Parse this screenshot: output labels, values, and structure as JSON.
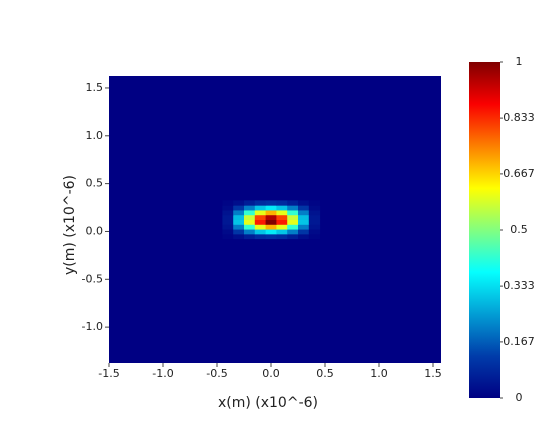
{
  "chart_data": {
    "type": "heatmap",
    "xlabel": "x(m) (x10^-6)",
    "ylabel": "y(m) (x10^-6)",
    "xlim": [
      -1.5,
      1.574
    ],
    "ylim": [
      -1.375,
      1.625
    ],
    "xticks": [
      -1.5,
      {
        "value": -1,
        "label": "-1.0"
      },
      -0.5,
      {
        "value": 0,
        "label": "0.0"
      },
      0.5,
      {
        "value": 1,
        "label": "1.0"
      },
      1.5
    ],
    "yticks": [
      {
        "value": -1,
        "label": "-1.0"
      },
      -0.5,
      {
        "value": 0,
        "label": "0.0"
      },
      0.5,
      {
        "value": 1,
        "label": "1.0"
      },
      1.5
    ],
    "x": [
      -0.4,
      -0.3,
      -0.2,
      -0.1,
      0,
      0.1,
      0.2,
      0.3,
      0.4
    ],
    "y": [
      -0.05,
      0,
      0.05,
      0.1,
      0.15,
      0.2,
      0.25,
      0.3
    ],
    "z": [
      [
        0.01,
        0.03,
        0.06,
        0.09,
        0.1,
        0.09,
        0.06,
        0.03,
        0.01
      ],
      [
        0.02,
        0.11,
        0.21,
        0.3,
        0.35,
        0.3,
        0.21,
        0.11,
        0.02
      ],
      [
        0.04,
        0.21,
        0.42,
        0.6,
        0.7,
        0.6,
        0.42,
        0.21,
        0.04
      ],
      [
        0.05,
        0.3,
        0.6,
        0.85,
        1,
        0.85,
        0.6,
        0.3,
        0.05
      ],
      [
        0.05,
        0.29,
        0.57,
        0.81,
        0.95,
        0.81,
        0.57,
        0.29,
        0.05
      ],
      [
        0.04,
        0.21,
        0.42,
        0.6,
        0.7,
        0.6,
        0.42,
        0.21,
        0.04
      ],
      [
        0.02,
        0.11,
        0.21,
        0.3,
        0.35,
        0.3,
        0.21,
        0.11,
        0.02
      ],
      [
        0.01,
        0.03,
        0.06,
        0.09,
        0.1,
        0.09,
        0.06,
        0.03,
        0.01
      ]
    ],
    "zlim": [
      0,
      1
    ],
    "zticks": [
      0,
      0.167,
      0.333,
      0.5,
      0.667,
      0.833,
      1
    ],
    "colorscale": [
      [
        0,
        "#000083"
      ],
      [
        0.125,
        "#003caa"
      ],
      [
        0.375,
        "#05ffff"
      ],
      [
        0.625,
        "#ffff00"
      ],
      [
        0.875,
        "#fa0000"
      ],
      [
        1,
        "#800000"
      ]
    ]
  }
}
